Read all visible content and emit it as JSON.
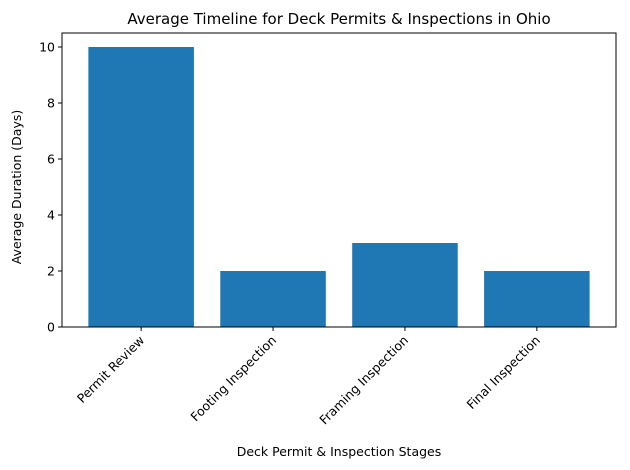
{
  "chart_data": {
    "type": "bar",
    "title": "Average Timeline for Deck Permits & Inspections in Ohio",
    "xlabel": "Deck Permit & Inspection Stages",
    "ylabel": "Average Duration (Days)",
    "categories": [
      "Permit Review",
      "Footing Inspection",
      "Framing Inspection",
      "Final Inspection"
    ],
    "values": [
      10,
      2,
      3,
      2
    ],
    "ylim": [
      0,
      10.5
    ],
    "yticks": [
      0,
      2,
      4,
      6,
      8,
      10
    ],
    "bar_color": "#1f77b4",
    "grid": false,
    "legend": "none"
  }
}
